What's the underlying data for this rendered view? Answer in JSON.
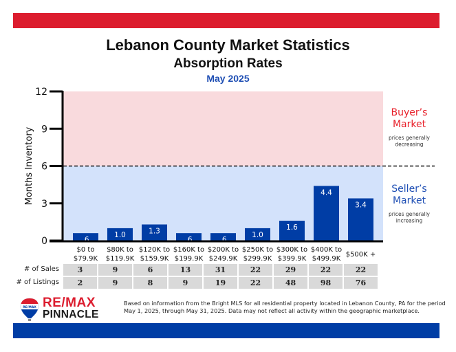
{
  "header": {
    "title": "Lebanon County Market Statistics",
    "subtitle": "Absorption Rates",
    "period": "May 2025"
  },
  "colors": {
    "top_band": "#dc1c2e",
    "bottom_band": "#003da5",
    "bar": "#003da5",
    "buyer_zone": "#f9dadd",
    "seller_zone": "#d3e2fb",
    "buyer_text": "#e8202a",
    "seller_text": "#1f4fb4",
    "period_text": "#1f4fb4"
  },
  "chart_data": {
    "type": "bar",
    "title": "Absorption Rates",
    "xlabel": "",
    "ylabel": "Months Inventory",
    "ylim": [
      0,
      12
    ],
    "yticks": [
      0,
      3,
      6,
      9,
      12
    ],
    "categories": [
      [
        "$0 to",
        "$79.9K"
      ],
      [
        "$80K to",
        "$119.9K"
      ],
      [
        "$120K to",
        "$159.9K"
      ],
      [
        "$160K to",
        "$199.9K"
      ],
      [
        "$200K to",
        "$249.9K"
      ],
      [
        "$250K to",
        "$299.9K"
      ],
      [
        "$300K to",
        "$399.9K"
      ],
      [
        "$400K to",
        "$499.9K"
      ],
      [
        "$500K +"
      ]
    ],
    "values": [
      0.6,
      1.0,
      1.3,
      0.6,
      0.6,
      1.0,
      1.6,
      4.4,
      3.4
    ],
    "value_labels": [
      ".6",
      "1.0",
      "1.3",
      ".6",
      ".6",
      "1.0",
      "1.6",
      "4.4",
      "3.4"
    ],
    "threshold": 6,
    "zones": [
      {
        "name": "Buyer's Market",
        "range": [
          6,
          12
        ],
        "title_lines": [
          "Buyer’s",
          "Market"
        ],
        "note_lines": [
          "prices generally",
          "decreasing"
        ]
      },
      {
        "name": "Seller's Market",
        "range": [
          0,
          6
        ],
        "title_lines": [
          "Seller’s",
          "Market"
        ],
        "note_lines": [
          "prices generally",
          "increasing"
        ]
      }
    ],
    "grid": false,
    "legend": "none"
  },
  "table": {
    "rows": [
      {
        "label": "# of Sales",
        "values": [
          "3",
          "9",
          "6",
          "13",
          "31",
          "22",
          "29",
          "22",
          "22"
        ]
      },
      {
        "label": "# of Listings",
        "values": [
          "2",
          "9",
          "8",
          "9",
          "19",
          "22",
          "48",
          "98",
          "76"
        ]
      }
    ]
  },
  "footer": {
    "brand_top": "RE/MAX",
    "brand_bottom": "PINNACLE",
    "balloon_text": "RE/MAX",
    "note_line1": "Based on information from the Bright MLS for all residential property located in Lebanon County, PA for the period",
    "note_line2": "May 1, 2025, through May 31, 2025.  Data may not reflect all activity within the geographic marketplace."
  }
}
